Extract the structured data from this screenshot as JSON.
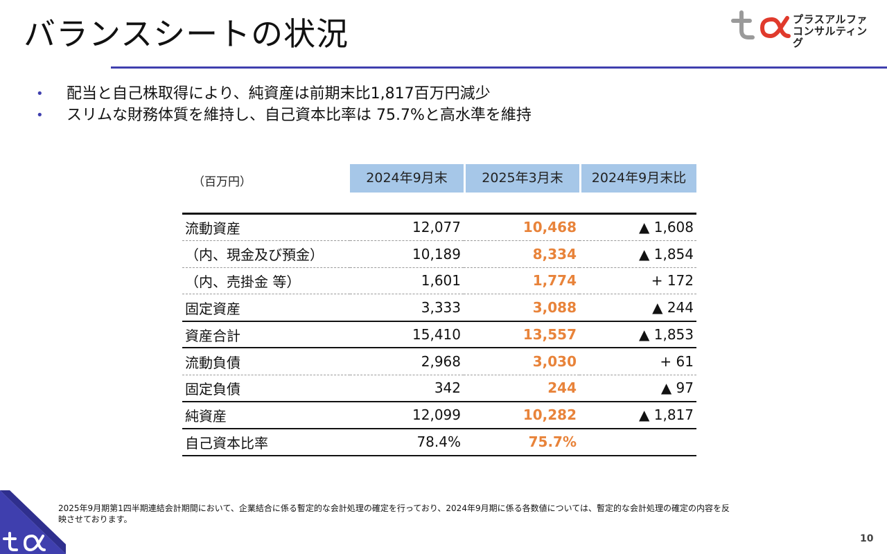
{
  "page": {
    "title": "バランスシートの状況",
    "page_number": "10"
  },
  "logo": {
    "line1": "プラスアルファ",
    "line2": "コンサルティング",
    "colors": {
      "gray": "#9a9a9a",
      "red": "#e03a2c"
    }
  },
  "bullets": [
    "配当と自己株取得により、純資産は前期末比1,817百万円減少",
    "スリムな財務体質を維持し、自己資本比率は 75.7%と高水準を維持"
  ],
  "table": {
    "unit": "（百万円）",
    "headers": [
      "2024年9月末",
      "2025年3月末",
      "2024年9月末比"
    ],
    "rows": [
      {
        "label": "流動資産",
        "v1": "12,077",
        "v2": "10,468",
        "v3": "▲ 1,608"
      },
      {
        "label": "（内、現金及び預金）",
        "v1": "10,189",
        "v2": "8,334",
        "v3": "▲ 1,854"
      },
      {
        "label": "（内、売掛金 等）",
        "v1": "1,601",
        "v2": "1,774",
        "v3": "+ 172"
      },
      {
        "label": "固定資産",
        "v1": "3,333",
        "v2": "3,088",
        "v3": "▲ 244"
      },
      {
        "label": "資産合計",
        "v1": "15,410",
        "v2": "13,557",
        "v3": "▲ 1,853"
      },
      {
        "label": "流動負債",
        "v1": "2,968",
        "v2": "3,030",
        "v3": "+ 61"
      },
      {
        "label": "固定負債",
        "v1": "342",
        "v2": "244",
        "v3": "▲ 97"
      },
      {
        "label": "純資産",
        "v1": "12,099",
        "v2": "10,282",
        "v3": "▲ 1,817"
      },
      {
        "label": "自己資本比率",
        "v1": "78.4%",
        "v2": "75.7%",
        "v3": ""
      }
    ]
  },
  "footnote": "2025年9月期第1四半期連結会計期間において、企業結合に係る暫定的な会計処理の確定を行っており、2024年9月期に係る各数値については、暫定的な会計処理の確定の内容を反映させております。",
  "colors": {
    "accent": "#3f3fae",
    "header_fill": "#a6c7e8",
    "highlight": "#e8833a"
  }
}
